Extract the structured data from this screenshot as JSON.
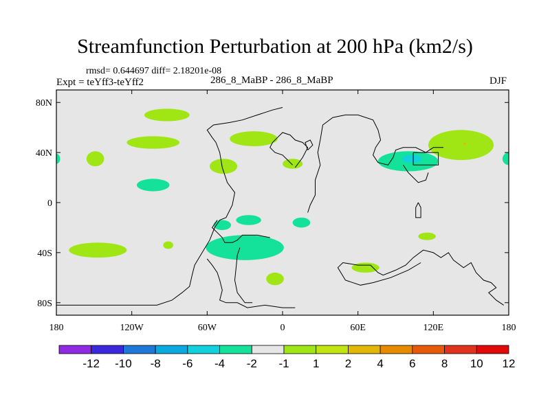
{
  "chart_data": {
    "type": "heatmap",
    "title": "Streamfunction Perturbation at 200 hPa (km2/s)",
    "stats_text": "rmsd= 0.644697 diff= 2.18201e-08",
    "experiment_text": "Expt = teYff3-teYff2",
    "cases_text": "286_8_MaBP - 286_8_MaBP",
    "season": "DJF",
    "x_range": [
      -180,
      180
    ],
    "y_range": [
      -90,
      90
    ],
    "x_ticks": [
      {
        "value": -180,
        "label": "180"
      },
      {
        "value": -120,
        "label": "120W"
      },
      {
        "value": -60,
        "label": "60W"
      },
      {
        "value": 0,
        "label": "0"
      },
      {
        "value": 60,
        "label": "60E"
      },
      {
        "value": 120,
        "label": "120E"
      },
      {
        "value": 180,
        "label": "180"
      }
    ],
    "y_ticks": [
      {
        "value": 80,
        "label": "80N"
      },
      {
        "value": 40,
        "label": "40N"
      },
      {
        "value": 0,
        "label": "0"
      },
      {
        "value": -40,
        "label": "40S"
      },
      {
        "value": -80,
        "label": "80S"
      }
    ],
    "colorbar": {
      "colors": [
        "#8e2be2",
        "#3c28dc",
        "#1f78d8",
        "#0aa9e0",
        "#12d0dc",
        "#14e29a",
        "#e6e6e6",
        "#a0e614",
        "#c2e410",
        "#e2b808",
        "#e68a00",
        "#e65a0a",
        "#e0321c",
        "#e00a0a"
      ],
      "labels": [
        "-12",
        "-10",
        "-8",
        "-6",
        "-4",
        "-2",
        "-1",
        "1",
        "2",
        "4",
        "6",
        "8",
        "10",
        "12"
      ]
    },
    "colors": {
      "background": "#e6e6e6",
      "positive_1": "#a0e614",
      "negative_1": "#14e29a",
      "negative_2": "#12d0dc",
      "positive_6": "#e2b808"
    },
    "features": [
      {
        "name": "n-pacific-high",
        "level": "1 to 2",
        "color": "#a0e614",
        "lon": -92,
        "lat": 70,
        "rlon": 18,
        "rlat": 5
      },
      {
        "name": "north-america-south",
        "level": "1 to 2",
        "color": "#a0e614",
        "lon": -103,
        "lat": 48,
        "rlon": 21,
        "rlat": 5
      },
      {
        "name": "atlantic-north",
        "level": "1 to 2",
        "color": "#a0e614",
        "lon": -23,
        "lat": 51,
        "rlon": 19,
        "rlat": 6
      },
      {
        "name": "pacific-40n",
        "level": "1 to 2",
        "color": "#a0e614",
        "lon": -149,
        "lat": 35,
        "rlon": 7,
        "rlat": 6
      },
      {
        "name": "pacific-east-25n",
        "level": "-1 to -2",
        "color": "#14e29a",
        "lon": -103,
        "lat": 14,
        "rlon": 13,
        "rlat": 5
      },
      {
        "name": "atlantic-30n",
        "level": "1 to 2",
        "color": "#a0e614",
        "lon": -47,
        "lat": 29,
        "rlon": 11,
        "rlat": 6
      },
      {
        "name": "mediterranean",
        "level": "1 to 2",
        "color": "#a0e614",
        "lon": 8,
        "lat": 31,
        "rlon": 8,
        "rlat": 4
      },
      {
        "name": "asia-midlat-negative",
        "level": "-1 to -2",
        "color": "#14e29a",
        "lon": 100,
        "lat": 33,
        "rlon": 24,
        "rlat": 8
      },
      {
        "name": "asia-midlat-core",
        "level": "-2 to -4",
        "color": "#12d0dc",
        "lon": 103,
        "lat": 35,
        "rlon": 8,
        "rlat": 3
      },
      {
        "name": "n-pacific-west-positive",
        "level": "1 to 2",
        "color": "#a0e614",
        "lon": 142,
        "lat": 46,
        "rlon": 26,
        "rlat": 12
      },
      {
        "name": "n-pacific-west-peak",
        "level": "4 to 6",
        "color": "#e2b808",
        "lon": 145,
        "lat": 47,
        "rlon": 1,
        "rlat": 1
      },
      {
        "name": "dateline-east",
        "level": "-1 to -2",
        "color": "#14e29a",
        "lon": 180,
        "lat": 35,
        "rlon": 5,
        "rlat": 5
      },
      {
        "name": "dateline-west",
        "level": "-1 to -2",
        "color": "#14e29a",
        "lon": -180,
        "lat": 35,
        "rlon": 3,
        "rlat": 4
      },
      {
        "name": "s-pacific-20s",
        "level": "-1 to -2",
        "color": "#14e29a",
        "lon": -48,
        "lat": -18,
        "rlon": 7,
        "rlat": 4
      },
      {
        "name": "s-atlantic-15s",
        "level": "-1 to -2",
        "color": "#14e29a",
        "lon": -27,
        "lat": -14,
        "rlon": 10,
        "rlat": 4
      },
      {
        "name": "s-africa-15s",
        "level": "-1 to -2",
        "color": "#14e29a",
        "lon": 15,
        "lat": -16,
        "rlon": 7,
        "rlat": 4
      },
      {
        "name": "s-atlantic-40s",
        "level": "-1 to -2",
        "color": "#14e29a",
        "lon": -30,
        "lat": -36,
        "rlon": 31,
        "rlat": 10
      },
      {
        "name": "s-pacific-35s",
        "level": "1 to 2",
        "color": "#a0e614",
        "lon": -147,
        "lat": -38,
        "rlon": 23,
        "rlat": 6
      },
      {
        "name": "s-pacific-small",
        "level": "1 to 2",
        "color": "#a0e614",
        "lon": -91,
        "lat": -34,
        "rlon": 4,
        "rlat": 3
      },
      {
        "name": "s-atlantic-60s",
        "level": "1 to 2",
        "color": "#a0e614",
        "lon": -6,
        "lat": -61,
        "rlon": 7,
        "rlat": 5
      },
      {
        "name": "s-indian-50s",
        "level": "1 to 2",
        "color": "#a0e614",
        "lon": 66,
        "lat": -52,
        "rlon": 11,
        "rlat": 4
      },
      {
        "name": "australia-east",
        "level": "1 to 2",
        "color": "#a0e614",
        "lon": 115,
        "lat": -27,
        "rlon": 7,
        "rlat": 3
      }
    ],
    "coastlines": [
      [
        [
          -180,
          -82
        ],
        [
          -100,
          -82
        ],
        [
          -88,
          -78
        ],
        [
          -80,
          -72
        ],
        [
          -74,
          -67
        ],
        [
          -72,
          -58
        ],
        [
          -70,
          -50
        ],
        [
          -64,
          -40
        ],
        [
          -58,
          -30
        ],
        [
          -54,
          -20
        ],
        [
          -50,
          -14
        ],
        [
          -45,
          -12
        ],
        [
          -40,
          -2
        ],
        [
          -38,
          8
        ],
        [
          -44,
          16
        ],
        [
          -48,
          28
        ],
        [
          -50,
          40
        ],
        [
          -53,
          48
        ],
        [
          -56,
          52
        ],
        [
          -60,
          58
        ],
        [
          -55,
          62
        ],
        [
          -42,
          64
        ],
        [
          -32,
          66
        ],
        [
          -20,
          70
        ],
        [
          -8,
          74
        ],
        [
          0,
          76
        ]
      ],
      [
        [
          -60,
          -45
        ],
        [
          -56,
          -50
        ],
        [
          -52,
          -56
        ],
        [
          -50,
          -62
        ],
        [
          -48,
          -70
        ],
        [
          -50,
          -78
        ],
        [
          -45,
          -80
        ],
        [
          -36,
          -80
        ],
        [
          -28,
          -84
        ],
        [
          -14,
          -82
        ],
        [
          0,
          -84
        ],
        [
          10,
          -84
        ]
      ],
      [
        [
          -34,
          -36
        ],
        [
          -36,
          -42
        ],
        [
          -37,
          -52
        ],
        [
          -38,
          -62
        ],
        [
          -36,
          -72
        ],
        [
          -30,
          -80
        ],
        [
          -24,
          -80
        ]
      ],
      [
        [
          -10,
          -28
        ],
        [
          -20,
          -26
        ],
        [
          -32,
          -26
        ],
        [
          -36,
          -30
        ],
        [
          -40,
          -32
        ],
        [
          -46,
          -32
        ],
        [
          -48,
          -28
        ],
        [
          -52,
          -24
        ],
        [
          -56,
          -20
        ],
        [
          -52,
          -14
        ]
      ],
      [
        [
          20,
          -8
        ],
        [
          22,
          -2
        ],
        [
          26,
          6
        ],
        [
          26,
          18
        ],
        [
          30,
          30
        ],
        [
          28,
          40
        ],
        [
          30,
          50
        ],
        [
          32,
          62
        ],
        [
          40,
          68
        ],
        [
          50,
          70
        ],
        [
          60,
          70
        ],
        [
          72,
          66
        ],
        [
          76,
          58
        ],
        [
          78,
          50
        ],
        [
          74,
          44
        ],
        [
          72,
          38
        ],
        [
          76,
          32
        ],
        [
          84,
          30
        ],
        [
          88,
          36
        ],
        [
          90,
          42
        ],
        [
          96,
          44
        ],
        [
          106,
          44
        ],
        [
          114,
          40
        ],
        [
          120,
          44
        ],
        [
          128,
          44
        ]
      ],
      [
        [
          10,
          28
        ],
        [
          16,
          36
        ],
        [
          20,
          44
        ],
        [
          16,
          48
        ],
        [
          10,
          50
        ],
        [
          6,
          54
        ],
        [
          0,
          56
        ],
        [
          -4,
          52
        ],
        [
          -8,
          48
        ],
        [
          -10,
          44
        ],
        [
          -6,
          40
        ],
        [
          0,
          38
        ],
        [
          4,
          34
        ],
        [
          8,
          30
        ]
      ],
      [
        [
          110,
          -48
        ],
        [
          100,
          -54
        ],
        [
          86,
          -60
        ],
        [
          72,
          -64
        ],
        [
          62,
          -66
        ],
        [
          50,
          -62
        ],
        [
          44,
          -52
        ],
        [
          48,
          -48
        ],
        [
          60,
          -50
        ],
        [
          70,
          -50
        ],
        [
          76,
          -56
        ],
        [
          80,
          -58
        ],
        [
          90,
          -54
        ],
        [
          98,
          -50
        ],
        [
          104,
          -44
        ],
        [
          112,
          -38
        ],
        [
          120,
          -40
        ],
        [
          126,
          -44
        ],
        [
          132,
          -40
        ],
        [
          136,
          -46
        ],
        [
          144,
          -52
        ],
        [
          150,
          -48
        ],
        [
          154,
          -56
        ],
        [
          160,
          -62
        ],
        [
          166,
          -64
        ],
        [
          170,
          -68
        ],
        [
          164,
          -72
        ],
        [
          170,
          -78
        ],
        [
          176,
          -82
        ]
      ],
      [
        [
          96,
          30
        ],
        [
          100,
          24
        ],
        [
          104,
          20
        ],
        [
          108,
          16
        ],
        [
          114,
          18
        ],
        [
          116,
          24
        ]
      ],
      [
        [
          104,
          40
        ],
        [
          124,
          40
        ],
        [
          124,
          30
        ],
        [
          104,
          30
        ],
        [
          104,
          40
        ]
      ],
      [
        [
          108,
          0
        ],
        [
          110,
          -4
        ],
        [
          110,
          -12
        ],
        [
          106,
          -12
        ],
        [
          106,
          -4
        ],
        [
          108,
          0
        ]
      ],
      [
        [
          20,
          42
        ],
        [
          24,
          46
        ],
        [
          22,
          50
        ],
        [
          18,
          48
        ],
        [
          20,
          42
        ]
      ]
    ]
  }
}
